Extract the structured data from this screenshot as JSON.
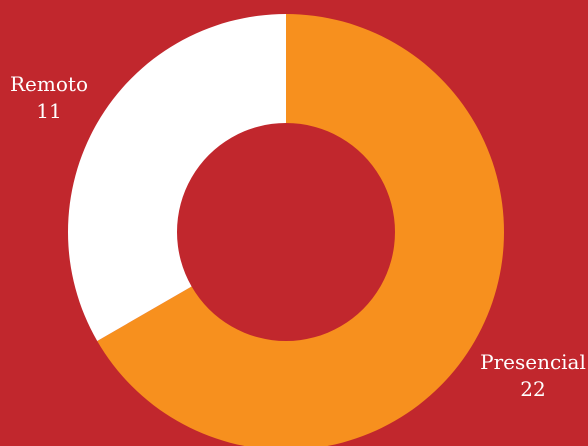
{
  "chart_data": {
    "type": "pie",
    "donut": true,
    "title": "",
    "categories": [
      "Presencial",
      "Remoto"
    ],
    "values": [
      22,
      11
    ],
    "colors": [
      "#f7901e",
      "#ffffff"
    ],
    "background": "#c1272d"
  }
}
